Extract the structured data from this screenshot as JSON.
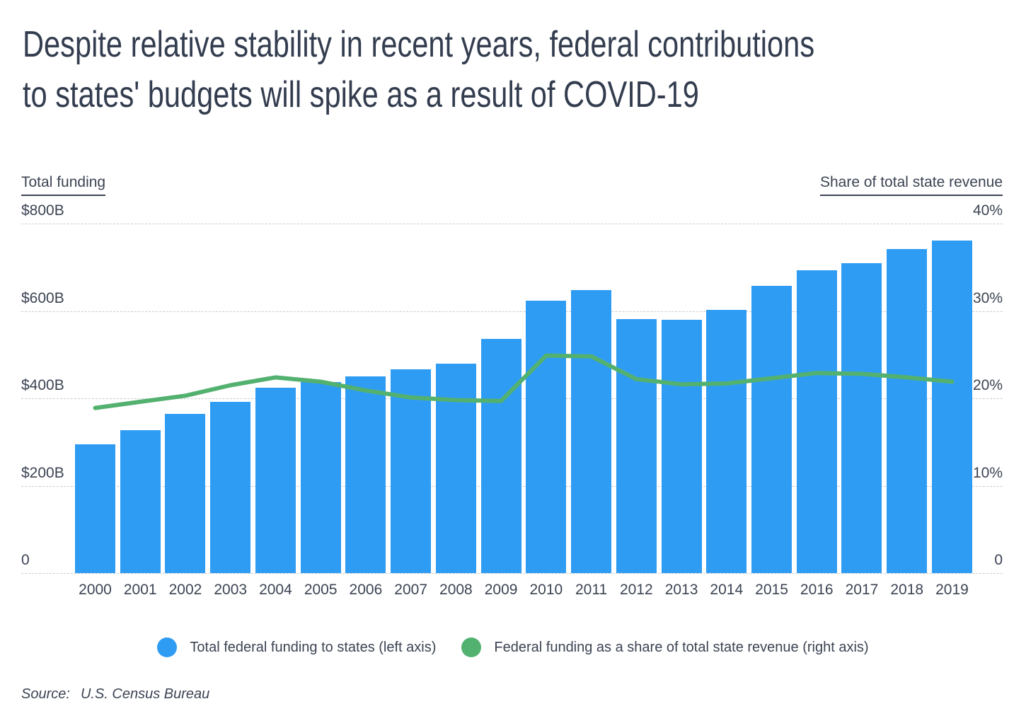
{
  "title": {
    "line1": "Despite relative stability in recent years, federal contributions",
    "line2": "to states' budgets will spike as a result of COVID-19"
  },
  "axes": {
    "left_header": "Total funding",
    "right_header": "Share of total state revenue",
    "left_ticks": [
      "$800B",
      "$600B",
      "$400B",
      "$200B",
      "0"
    ],
    "right_ticks": [
      "40%",
      "30%",
      "20%",
      "10%",
      "0"
    ]
  },
  "chart_data": {
    "type": "bar",
    "subtype": "bar-and-line-dual-axis",
    "title": "Despite relative stability in recent years, federal contributions to states' budgets will spike as a result of COVID-19",
    "categories": [
      "2000",
      "2001",
      "2002",
      "2003",
      "2004",
      "2005",
      "2006",
      "2007",
      "2008",
      "2009",
      "2010",
      "2011",
      "2012",
      "2013",
      "2014",
      "2015",
      "2016",
      "2017",
      "2018",
      "2019"
    ],
    "series": [
      {
        "name": "Total federal funding to states (left axis)",
        "type": "bar",
        "axis": "left",
        "unit": "billions USD",
        "values": [
          295,
          327,
          364,
          392,
          424,
          437,
          451,
          467,
          479,
          536,
          624,
          648,
          581,
          580,
          603,
          657,
          693,
          710,
          742,
          761
        ]
      },
      {
        "name": "Federal funding as a share of total state revenue (right axis)",
        "type": "line",
        "axis": "right",
        "unit": "percent",
        "values": [
          18.9,
          19.6,
          20.3,
          21.5,
          22.4,
          21.9,
          20.9,
          20.1,
          19.8,
          19.7,
          24.9,
          24.8,
          22.2,
          21.6,
          21.7,
          22.3,
          22.9,
          22.8,
          22.4,
          21.9
        ]
      }
    ],
    "left_axis": {
      "label": "Total funding",
      "min": 0,
      "max": 800,
      "ticks": [
        0,
        200,
        400,
        600,
        800
      ]
    },
    "right_axis": {
      "label": "Share of total state revenue",
      "min": 0,
      "max": 40,
      "ticks": [
        0,
        10,
        20,
        30,
        40
      ]
    },
    "grid": "horizontal dashed",
    "legend_position": "bottom-center"
  },
  "legend": [
    {
      "label": "Total federal funding to states (left axis)",
      "color": "#2f9cf4"
    },
    {
      "label": "Federal funding as a share of total state revenue (right axis)",
      "color": "#53b170"
    }
  ],
  "source": {
    "prefix": "Source:",
    "text": "U.S. Census Bureau"
  },
  "colors": {
    "bar": "#2f9cf4",
    "line": "#53b170",
    "title": "#333d4f",
    "text": "#3c4453",
    "grid": "#c7cbd0",
    "background": "#ffffff"
  }
}
